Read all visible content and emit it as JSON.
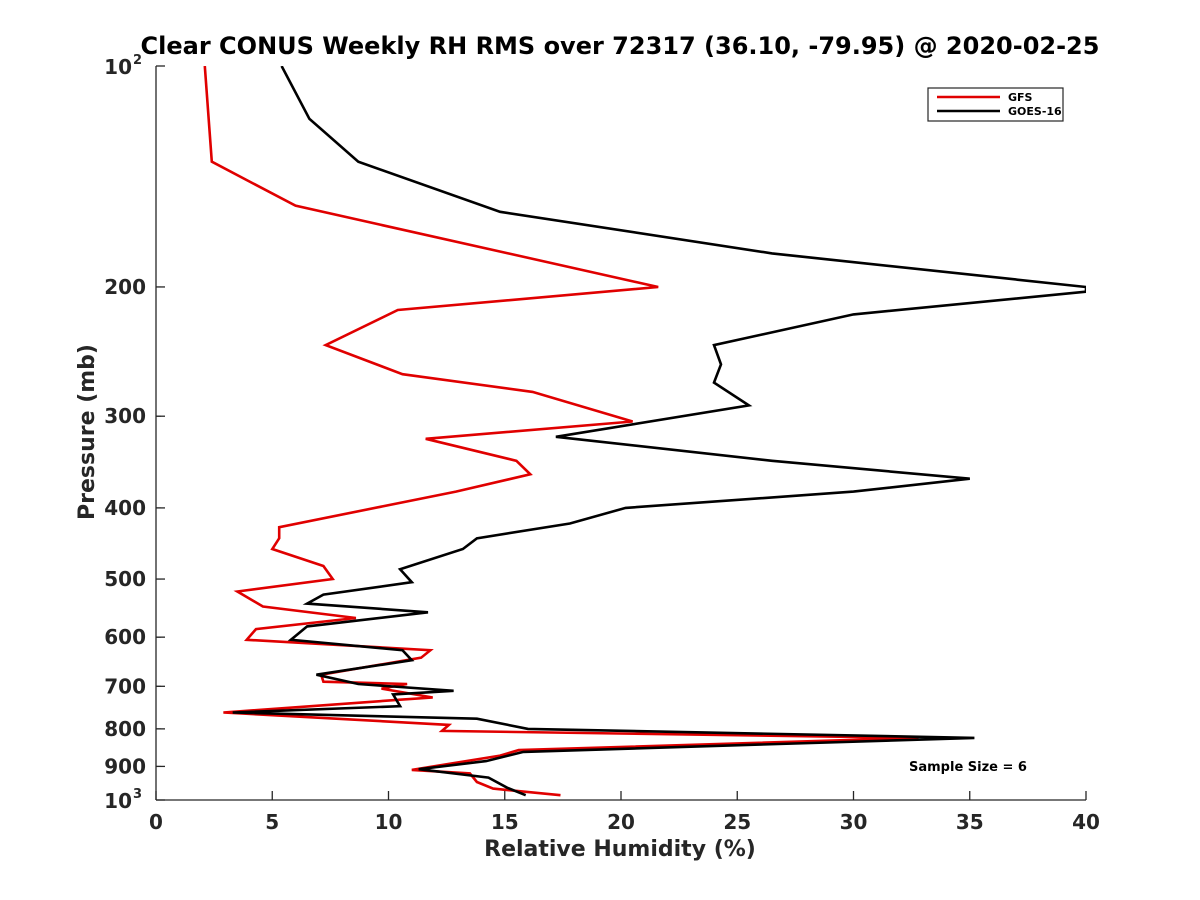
{
  "chart_data": {
    "type": "line",
    "title": "Clear CONUS Weekly RH RMS over 72317 (36.10, -79.95) @ 2020-02-25",
    "xlabel": "Relative Humidity (%)",
    "ylabel": "Pressure (mb)",
    "xlim": [
      0,
      40
    ],
    "ylim": [
      100,
      1000
    ],
    "yscale": "log",
    "y_reversed": true,
    "grid": false,
    "legend_position": "top-right",
    "x_ticks": [
      "0",
      "5",
      "10",
      "15",
      "20",
      "25",
      "30",
      "35",
      "40"
    ],
    "y_ticks": [
      {
        "value": 100,
        "base": "10",
        "exp": "2"
      },
      {
        "value": 200,
        "label": "200"
      },
      {
        "value": 300,
        "label": "300"
      },
      {
        "value": 400,
        "label": "400"
      },
      {
        "value": 500,
        "label": "500"
      },
      {
        "value": 600,
        "label": "600"
      },
      {
        "value": 700,
        "label": "700"
      },
      {
        "value": 800,
        "label": "800"
      },
      {
        "value": 900,
        "label": "900"
      },
      {
        "value": 1000,
        "base": "10",
        "exp": "3"
      }
    ],
    "annotation": "Sample Size = 6",
    "series": [
      {
        "name": "GFS",
        "color": "#e00000",
        "points": [
          [
            2.1,
            100
          ],
          [
            2.4,
            135
          ],
          [
            6.0,
            155
          ],
          [
            21.6,
            200
          ],
          [
            10.4,
            215
          ],
          [
            7.3,
            240
          ],
          [
            10.6,
            263
          ],
          [
            16.2,
            278
          ],
          [
            20.5,
            305
          ],
          [
            11.6,
            322
          ],
          [
            15.5,
            345
          ],
          [
            16.1,
            360
          ],
          [
            12.9,
            380
          ],
          [
            5.3,
            425
          ],
          [
            5.3,
            440
          ],
          [
            5.0,
            455
          ],
          [
            7.2,
            480
          ],
          [
            7.6,
            500
          ],
          [
            3.5,
            520
          ],
          [
            4.6,
            545
          ],
          [
            8.6,
            565
          ],
          [
            4.3,
            585
          ],
          [
            3.9,
            605
          ],
          [
            11.8,
            625
          ],
          [
            11.4,
            640
          ],
          [
            7.1,
            675
          ],
          [
            7.2,
            690
          ],
          [
            10.8,
            695
          ],
          [
            9.7,
            705
          ],
          [
            11.9,
            725
          ],
          [
            10.5,
            730
          ],
          [
            2.9,
            760
          ],
          [
            12.6,
            790
          ],
          [
            12.3,
            805
          ],
          [
            32.8,
            823
          ],
          [
            15.6,
            855
          ],
          [
            14.8,
            870
          ],
          [
            11.0,
            910
          ],
          [
            13.5,
            920
          ],
          [
            13.8,
            945
          ],
          [
            14.5,
            965
          ],
          [
            17.4,
            985
          ]
        ]
      },
      {
        "name": "GOES-16",
        "color": "#000000",
        "points": [
          [
            5.4,
            100
          ],
          [
            6.6,
            118
          ],
          [
            8.7,
            135
          ],
          [
            14.8,
            158
          ],
          [
            26.5,
            180
          ],
          [
            40.0,
            200
          ],
          [
            40.0,
            203
          ],
          [
            30.0,
            218
          ],
          [
            24.0,
            240
          ],
          [
            24.3,
            255
          ],
          [
            24.0,
            270
          ],
          [
            25.5,
            290
          ],
          [
            17.2,
            320
          ],
          [
            26.5,
            345
          ],
          [
            35.0,
            365
          ],
          [
            30.0,
            380
          ],
          [
            20.2,
            400
          ],
          [
            17.8,
            420
          ],
          [
            13.8,
            440
          ],
          [
            13.2,
            455
          ],
          [
            10.5,
            485
          ],
          [
            11.0,
            505
          ],
          [
            7.2,
            525
          ],
          [
            6.5,
            540
          ],
          [
            11.7,
            555
          ],
          [
            6.5,
            580
          ],
          [
            5.8,
            605
          ],
          [
            10.6,
            625
          ],
          [
            11.0,
            645
          ],
          [
            6.9,
            675
          ],
          [
            8.7,
            695
          ],
          [
            12.8,
            710
          ],
          [
            10.2,
            718
          ],
          [
            10.5,
            745
          ],
          [
            3.3,
            760
          ],
          [
            13.8,
            775
          ],
          [
            16.0,
            800
          ],
          [
            35.2,
            823
          ],
          [
            15.8,
            860
          ],
          [
            14.2,
            885
          ],
          [
            11.3,
            908
          ],
          [
            14.3,
            932
          ],
          [
            15.1,
            962
          ],
          [
            15.9,
            985
          ]
        ]
      }
    ]
  }
}
